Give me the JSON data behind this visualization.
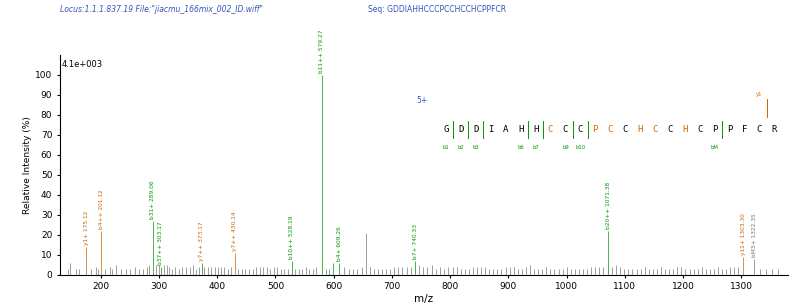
{
  "title_locus": "Locus:1.1.1.837.19 File:\"jiacmu_166mix_002_ID.wiff\"",
  "title_seq": "Seq: GDDIAHHCCCPCCHCCHCPPFCR",
  "intensity_label": "4.1e+003",
  "xlabel": "m/z",
  "ylabel": "Relative Intensity (%)",
  "xlim": [
    130,
    1380
  ],
  "ylim": [
    0,
    110
  ],
  "yticks": [
    0,
    10,
    20,
    30,
    40,
    50,
    60,
    70,
    80,
    90,
    100
  ],
  "xticks": [
    200,
    300,
    400,
    500,
    600,
    700,
    800,
    900,
    1000,
    1100,
    1200,
    1300
  ],
  "charge_state": "5+",
  "background_color": "#ffffff",
  "peaks": [
    {
      "mz": 143.0,
      "intensity": 3,
      "color": "#777777"
    },
    {
      "mz": 147.1,
      "intensity": 6,
      "color": "#777777"
    },
    {
      "mz": 157.0,
      "intensity": 3,
      "color": "#777777"
    },
    {
      "mz": 163.0,
      "intensity": 3,
      "color": "#777777"
    },
    {
      "mz": 175.12,
      "intensity": 14,
      "color": "#cc6600"
    },
    {
      "mz": 183.0,
      "intensity": 3,
      "color": "#777777"
    },
    {
      "mz": 191.0,
      "intensity": 4,
      "color": "#777777"
    },
    {
      "mz": 195.0,
      "intensity": 3,
      "color": "#777777"
    },
    {
      "mz": 201.12,
      "intensity": 22,
      "color": "#cc6600"
    },
    {
      "mz": 208.0,
      "intensity": 3,
      "color": "#777777"
    },
    {
      "mz": 215.0,
      "intensity": 4,
      "color": "#777777"
    },
    {
      "mz": 220.0,
      "intensity": 3,
      "color": "#777777"
    },
    {
      "mz": 227.0,
      "intensity": 5,
      "color": "#777777"
    },
    {
      "mz": 235.0,
      "intensity": 3,
      "color": "#777777"
    },
    {
      "mz": 243.0,
      "intensity": 3,
      "color": "#777777"
    },
    {
      "mz": 250.0,
      "intensity": 3,
      "color": "#777777"
    },
    {
      "mz": 258.0,
      "intensity": 4,
      "color": "#777777"
    },
    {
      "mz": 265.0,
      "intensity": 3,
      "color": "#777777"
    },
    {
      "mz": 272.0,
      "intensity": 3,
      "color": "#777777"
    },
    {
      "mz": 279.0,
      "intensity": 4,
      "color": "#777777"
    },
    {
      "mz": 283.0,
      "intensity": 5,
      "color": "#777777"
    },
    {
      "mz": 289.06,
      "intensity": 27,
      "color": "#009900"
    },
    {
      "mz": 295.0,
      "intensity": 5,
      "color": "#777777"
    },
    {
      "mz": 300.0,
      "intensity": 5,
      "color": "#777777"
    },
    {
      "mz": 303.17,
      "intensity": 4,
      "color": "#009900"
    },
    {
      "mz": 308.0,
      "intensity": 5,
      "color": "#777777"
    },
    {
      "mz": 313.0,
      "intensity": 5,
      "color": "#777777"
    },
    {
      "mz": 318.0,
      "intensity": 4,
      "color": "#777777"
    },
    {
      "mz": 322.0,
      "intensity": 3,
      "color": "#777777"
    },
    {
      "mz": 328.0,
      "intensity": 4,
      "color": "#777777"
    },
    {
      "mz": 334.0,
      "intensity": 3,
      "color": "#777777"
    },
    {
      "mz": 340.0,
      "intensity": 4,
      "color": "#777777"
    },
    {
      "mz": 347.0,
      "intensity": 4,
      "color": "#777777"
    },
    {
      "mz": 353.0,
      "intensity": 4,
      "color": "#777777"
    },
    {
      "mz": 358.0,
      "intensity": 5,
      "color": "#777777"
    },
    {
      "mz": 364.0,
      "intensity": 3,
      "color": "#777777"
    },
    {
      "mz": 368.0,
      "intensity": 4,
      "color": "#777777"
    },
    {
      "mz": 373.17,
      "intensity": 6,
      "color": "#009900"
    },
    {
      "mz": 378.0,
      "intensity": 4,
      "color": "#777777"
    },
    {
      "mz": 384.0,
      "intensity": 4,
      "color": "#777777"
    },
    {
      "mz": 390.0,
      "intensity": 4,
      "color": "#777777"
    },
    {
      "mz": 396.0,
      "intensity": 4,
      "color": "#777777"
    },
    {
      "mz": 401.0,
      "intensity": 4,
      "color": "#777777"
    },
    {
      "mz": 406.0,
      "intensity": 4,
      "color": "#777777"
    },
    {
      "mz": 412.0,
      "intensity": 4,
      "color": "#777777"
    },
    {
      "mz": 418.0,
      "intensity": 3,
      "color": "#777777"
    },
    {
      "mz": 424.0,
      "intensity": 4,
      "color": "#777777"
    },
    {
      "mz": 430.14,
      "intensity": 11,
      "color": "#cc6600"
    },
    {
      "mz": 436.0,
      "intensity": 3,
      "color": "#777777"
    },
    {
      "mz": 442.0,
      "intensity": 3,
      "color": "#777777"
    },
    {
      "mz": 448.0,
      "intensity": 3,
      "color": "#777777"
    },
    {
      "mz": 455.0,
      "intensity": 3,
      "color": "#777777"
    },
    {
      "mz": 461.0,
      "intensity": 3,
      "color": "#777777"
    },
    {
      "mz": 467.0,
      "intensity": 4,
      "color": "#777777"
    },
    {
      "mz": 473.0,
      "intensity": 4,
      "color": "#777777"
    },
    {
      "mz": 479.0,
      "intensity": 4,
      "color": "#777777"
    },
    {
      "mz": 485.0,
      "intensity": 4,
      "color": "#777777"
    },
    {
      "mz": 491.0,
      "intensity": 3,
      "color": "#777777"
    },
    {
      "mz": 497.0,
      "intensity": 4,
      "color": "#777777"
    },
    {
      "mz": 503.0,
      "intensity": 4,
      "color": "#777777"
    },
    {
      "mz": 509.0,
      "intensity": 3,
      "color": "#777777"
    },
    {
      "mz": 515.0,
      "intensity": 3,
      "color": "#777777"
    },
    {
      "mz": 521.0,
      "intensity": 3,
      "color": "#777777"
    },
    {
      "mz": 528.19,
      "intensity": 7,
      "color": "#009900"
    },
    {
      "mz": 534.0,
      "intensity": 3,
      "color": "#777777"
    },
    {
      "mz": 540.0,
      "intensity": 3,
      "color": "#777777"
    },
    {
      "mz": 546.0,
      "intensity": 3,
      "color": "#777777"
    },
    {
      "mz": 552.0,
      "intensity": 4,
      "color": "#777777"
    },
    {
      "mz": 558.0,
      "intensity": 3,
      "color": "#777777"
    },
    {
      "mz": 564.0,
      "intensity": 3,
      "color": "#777777"
    },
    {
      "mz": 570.0,
      "intensity": 4,
      "color": "#777777"
    },
    {
      "mz": 579.27,
      "intensity": 100,
      "color": "#009900"
    },
    {
      "mz": 586.0,
      "intensity": 3,
      "color": "#777777"
    },
    {
      "mz": 592.0,
      "intensity": 3,
      "color": "#777777"
    },
    {
      "mz": 599.26,
      "intensity": 6,
      "color": "#009900"
    },
    {
      "mz": 609.26,
      "intensity": 6,
      "color": "#009900"
    },
    {
      "mz": 618.0,
      "intensity": 4,
      "color": "#777777"
    },
    {
      "mz": 626.0,
      "intensity": 3,
      "color": "#777777"
    },
    {
      "mz": 633.0,
      "intensity": 3,
      "color": "#777777"
    },
    {
      "mz": 640.0,
      "intensity": 3,
      "color": "#777777"
    },
    {
      "mz": 648.0,
      "intensity": 4,
      "color": "#777777"
    },
    {
      "mz": 655.0,
      "intensity": 21,
      "color": "#777777"
    },
    {
      "mz": 662.0,
      "intensity": 4,
      "color": "#777777"
    },
    {
      "mz": 669.0,
      "intensity": 3,
      "color": "#777777"
    },
    {
      "mz": 676.0,
      "intensity": 3,
      "color": "#777777"
    },
    {
      "mz": 683.0,
      "intensity": 3,
      "color": "#777777"
    },
    {
      "mz": 690.0,
      "intensity": 3,
      "color": "#777777"
    },
    {
      "mz": 697.0,
      "intensity": 3,
      "color": "#777777"
    },
    {
      "mz": 704.0,
      "intensity": 4,
      "color": "#777777"
    },
    {
      "mz": 711.0,
      "intensity": 4,
      "color": "#777777"
    },
    {
      "mz": 718.0,
      "intensity": 4,
      "color": "#777777"
    },
    {
      "mz": 725.0,
      "intensity": 4,
      "color": "#777777"
    },
    {
      "mz": 732.0,
      "intensity": 4,
      "color": "#777777"
    },
    {
      "mz": 740.33,
      "intensity": 7,
      "color": "#009900"
    },
    {
      "mz": 747.0,
      "intensity": 5,
      "color": "#777777"
    },
    {
      "mz": 754.0,
      "intensity": 4,
      "color": "#777777"
    },
    {
      "mz": 761.0,
      "intensity": 4,
      "color": "#777777"
    },
    {
      "mz": 768.0,
      "intensity": 5,
      "color": "#777777"
    },
    {
      "mz": 775.0,
      "intensity": 3,
      "color": "#777777"
    },
    {
      "mz": 782.0,
      "intensity": 4,
      "color": "#777777"
    },
    {
      "mz": 789.0,
      "intensity": 3,
      "color": "#777777"
    },
    {
      "mz": 797.0,
      "intensity": 4,
      "color": "#777777"
    },
    {
      "mz": 804.0,
      "intensity": 4,
      "color": "#777777"
    },
    {
      "mz": 811.0,
      "intensity": 4,
      "color": "#777777"
    },
    {
      "mz": 818.0,
      "intensity": 3,
      "color": "#777777"
    },
    {
      "mz": 825.0,
      "intensity": 3,
      "color": "#777777"
    },
    {
      "mz": 832.0,
      "intensity": 3,
      "color": "#777777"
    },
    {
      "mz": 839.0,
      "intensity": 4,
      "color": "#777777"
    },
    {
      "mz": 846.0,
      "intensity": 4,
      "color": "#777777"
    },
    {
      "mz": 853.0,
      "intensity": 4,
      "color": "#777777"
    },
    {
      "mz": 860.0,
      "intensity": 4,
      "color": "#777777"
    },
    {
      "mz": 867.0,
      "intensity": 3,
      "color": "#777777"
    },
    {
      "mz": 874.0,
      "intensity": 3,
      "color": "#777777"
    },
    {
      "mz": 881.0,
      "intensity": 3,
      "color": "#777777"
    },
    {
      "mz": 888.0,
      "intensity": 3,
      "color": "#777777"
    },
    {
      "mz": 895.0,
      "intensity": 4,
      "color": "#777777"
    },
    {
      "mz": 902.0,
      "intensity": 4,
      "color": "#777777"
    },
    {
      "mz": 909.0,
      "intensity": 4,
      "color": "#777777"
    },
    {
      "mz": 916.0,
      "intensity": 3,
      "color": "#777777"
    },
    {
      "mz": 923.0,
      "intensity": 3,
      "color": "#777777"
    },
    {
      "mz": 930.0,
      "intensity": 4,
      "color": "#777777"
    },
    {
      "mz": 937.0,
      "intensity": 5,
      "color": "#777777"
    },
    {
      "mz": 944.0,
      "intensity": 3,
      "color": "#777777"
    },
    {
      "mz": 951.0,
      "intensity": 3,
      "color": "#777777"
    },
    {
      "mz": 958.0,
      "intensity": 3,
      "color": "#777777"
    },
    {
      "mz": 965.0,
      "intensity": 4,
      "color": "#777777"
    },
    {
      "mz": 972.0,
      "intensity": 3,
      "color": "#777777"
    },
    {
      "mz": 979.0,
      "intensity": 3,
      "color": "#777777"
    },
    {
      "mz": 986.0,
      "intensity": 3,
      "color": "#777777"
    },
    {
      "mz": 993.0,
      "intensity": 3,
      "color": "#777777"
    },
    {
      "mz": 1000.0,
      "intensity": 4,
      "color": "#777777"
    },
    {
      "mz": 1007.0,
      "intensity": 3,
      "color": "#777777"
    },
    {
      "mz": 1014.0,
      "intensity": 3,
      "color": "#777777"
    },
    {
      "mz": 1021.0,
      "intensity": 3,
      "color": "#777777"
    },
    {
      "mz": 1028.0,
      "intensity": 3,
      "color": "#777777"
    },
    {
      "mz": 1035.0,
      "intensity": 3,
      "color": "#777777"
    },
    {
      "mz": 1042.0,
      "intensity": 4,
      "color": "#777777"
    },
    {
      "mz": 1049.0,
      "intensity": 4,
      "color": "#777777"
    },
    {
      "mz": 1056.0,
      "intensity": 4,
      "color": "#777777"
    },
    {
      "mz": 1063.0,
      "intensity": 4,
      "color": "#777777"
    },
    {
      "mz": 1071.38,
      "intensity": 22,
      "color": "#009900"
    },
    {
      "mz": 1078.0,
      "intensity": 4,
      "color": "#777777"
    },
    {
      "mz": 1085.0,
      "intensity": 5,
      "color": "#777777"
    },
    {
      "mz": 1092.0,
      "intensity": 4,
      "color": "#777777"
    },
    {
      "mz": 1099.0,
      "intensity": 3,
      "color": "#777777"
    },
    {
      "mz": 1106.0,
      "intensity": 3,
      "color": "#777777"
    },
    {
      "mz": 1113.0,
      "intensity": 3,
      "color": "#777777"
    },
    {
      "mz": 1120.0,
      "intensity": 3,
      "color": "#777777"
    },
    {
      "mz": 1127.0,
      "intensity": 3,
      "color": "#777777"
    },
    {
      "mz": 1134.0,
      "intensity": 4,
      "color": "#777777"
    },
    {
      "mz": 1141.0,
      "intensity": 3,
      "color": "#777777"
    },
    {
      "mz": 1148.0,
      "intensity": 3,
      "color": "#777777"
    },
    {
      "mz": 1155.0,
      "intensity": 3,
      "color": "#777777"
    },
    {
      "mz": 1162.0,
      "intensity": 4,
      "color": "#777777"
    },
    {
      "mz": 1169.0,
      "intensity": 3,
      "color": "#777777"
    },
    {
      "mz": 1176.0,
      "intensity": 3,
      "color": "#777777"
    },
    {
      "mz": 1183.0,
      "intensity": 3,
      "color": "#777777"
    },
    {
      "mz": 1190.0,
      "intensity": 4,
      "color": "#777777"
    },
    {
      "mz": 1197.0,
      "intensity": 4,
      "color": "#777777"
    },
    {
      "mz": 1204.0,
      "intensity": 3,
      "color": "#777777"
    },
    {
      "mz": 1211.0,
      "intensity": 3,
      "color": "#777777"
    },
    {
      "mz": 1218.0,
      "intensity": 3,
      "color": "#777777"
    },
    {
      "mz": 1225.0,
      "intensity": 3,
      "color": "#777777"
    },
    {
      "mz": 1232.0,
      "intensity": 4,
      "color": "#777777"
    },
    {
      "mz": 1239.0,
      "intensity": 3,
      "color": "#777777"
    },
    {
      "mz": 1246.0,
      "intensity": 3,
      "color": "#777777"
    },
    {
      "mz": 1253.0,
      "intensity": 3,
      "color": "#777777"
    },
    {
      "mz": 1260.0,
      "intensity": 4,
      "color": "#777777"
    },
    {
      "mz": 1267.0,
      "intensity": 3,
      "color": "#777777"
    },
    {
      "mz": 1274.0,
      "intensity": 3,
      "color": "#777777"
    },
    {
      "mz": 1281.0,
      "intensity": 4,
      "color": "#777777"
    },
    {
      "mz": 1288.0,
      "intensity": 4,
      "color": "#777777"
    },
    {
      "mz": 1295.0,
      "intensity": 4,
      "color": "#777777"
    },
    {
      "mz": 1303.3,
      "intensity": 9,
      "color": "#cc6600"
    },
    {
      "mz": 1322.35,
      "intensity": 8,
      "color": "#777777"
    },
    {
      "mz": 1332.0,
      "intensity": 3,
      "color": "#777777"
    },
    {
      "mz": 1342.0,
      "intensity": 3,
      "color": "#777777"
    },
    {
      "mz": 1352.0,
      "intensity": 3,
      "color": "#777777"
    },
    {
      "mz": 1362.0,
      "intensity": 3,
      "color": "#777777"
    }
  ],
  "annotations": [
    {
      "mz": 175.12,
      "intensity": 14,
      "label": "y1+ 175.12",
      "color": "#cc6600"
    },
    {
      "mz": 201.12,
      "intensity": 22,
      "label": "b4++ 201.12",
      "color": "#cc6600"
    },
    {
      "mz": 289.06,
      "intensity": 27,
      "label": "b31+ 289.06",
      "color": "#009900"
    },
    {
      "mz": 303.17,
      "intensity": 4,
      "label": "b37++ 303.17",
      "color": "#009900"
    },
    {
      "mz": 373.17,
      "intensity": 6,
      "label": "y7++ 373.17",
      "color": "#cc6600"
    },
    {
      "mz": 430.14,
      "intensity": 11,
      "label": "y7++ 430.14",
      "color": "#cc6600"
    },
    {
      "mz": 528.19,
      "intensity": 7,
      "label": "b10++ 528.19",
      "color": "#009900"
    },
    {
      "mz": 579.27,
      "intensity": 100,
      "label": "b11++ 579.27",
      "color": "#009900"
    },
    {
      "mz": 609.26,
      "intensity": 6,
      "label": "b4+ 609.26",
      "color": "#009900"
    },
    {
      "mz": 740.33,
      "intensity": 7,
      "label": "b7+ 740.33",
      "color": "#009900"
    },
    {
      "mz": 1071.38,
      "intensity": 22,
      "label": "b20++ 1071.38",
      "color": "#009900"
    },
    {
      "mz": 1303.3,
      "intensity": 9,
      "label": "y11+ 1303.30",
      "color": "#cc6600"
    },
    {
      "mz": 1322.35,
      "intensity": 8,
      "label": "bM3+ 1322.35",
      "color": "#777777"
    }
  ],
  "peptide_seq": [
    "G",
    "D",
    "D",
    "I",
    "A",
    "H",
    "H",
    "C",
    "C",
    "C",
    "P",
    "C",
    "C",
    "H",
    "C",
    "C",
    "H",
    "C",
    "P",
    "P",
    "F",
    "C",
    "R"
  ],
  "b_cut_after": [
    0,
    1,
    2,
    5,
    6,
    8,
    9,
    18
  ],
  "y_cut_after": [
    21
  ],
  "orange_idx": [
    7,
    10,
    11,
    13,
    14,
    16
  ],
  "b_labels_map": {
    "0": "b1",
    "1": "b2",
    "2": "b3",
    "5": "b6",
    "6": "b7",
    "8": "b9",
    "9": "b10",
    "18": "bM"
  },
  "y_labels_map": {
    "21": "y1"
  }
}
